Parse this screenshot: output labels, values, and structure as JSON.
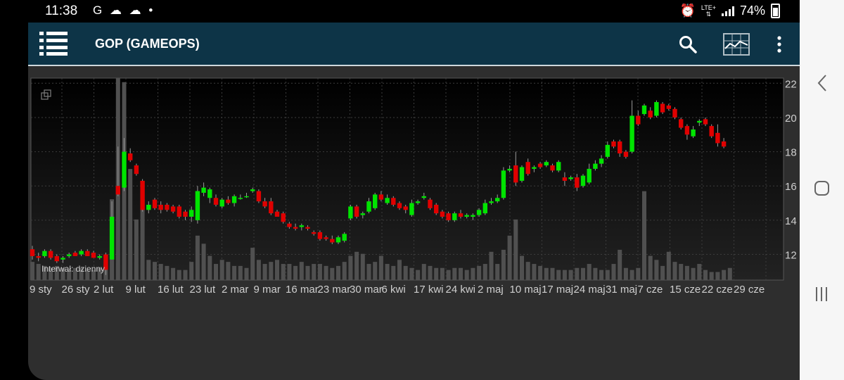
{
  "status": {
    "time": "11:38",
    "notification_icons": "G ☁ ☁ •",
    "lte": "LTE+",
    "battery": "74%"
  },
  "appbar": {
    "title": "GOP (GAMEOPS)"
  },
  "colors": {
    "up": "#00e400",
    "down": "#e00000",
    "volume": "#505050",
    "grid": "#3c3c3c",
    "axis_text": "#cfcfcf"
  },
  "chart_data": {
    "type": "candlestick",
    "interval_label": "Interwał: dzienny",
    "ylim": [
      10.5,
      22.3
    ],
    "y_ticks": [
      "22",
      "20",
      "18",
      "16",
      "14",
      "12"
    ],
    "x_labels": [
      "9 sty",
      "26 sty",
      "2 lut",
      "9 lut",
      "16 lut",
      "23 lut",
      "2 mar",
      "9 mar",
      "16 mar",
      "23 mar",
      "30 mar",
      "6 kwi",
      "17 kwi",
      "24 kwi",
      "2 maj",
      "10 maj",
      "17 maj",
      "24 maj",
      "31 maj",
      "7 cze",
      "15 cze",
      "22 cze",
      "29 cze"
    ],
    "candles": [
      {
        "o": 12.3,
        "h": 12.5,
        "l": 11.7,
        "c": 11.9
      },
      {
        "o": 11.9,
        "h": 12.1,
        "l": 11.6,
        "c": 11.8
      },
      {
        "o": 11.9,
        "h": 12.3,
        "l": 11.8,
        "c": 12.2
      },
      {
        "o": 12.2,
        "h": 12.3,
        "l": 11.7,
        "c": 11.8
      },
      {
        "o": 11.9,
        "h": 12.0,
        "l": 11.5,
        "c": 11.6
      },
      {
        "o": 11.7,
        "h": 11.9,
        "l": 11.5,
        "c": 11.8
      },
      {
        "o": 11.9,
        "h": 12.1,
        "l": 11.8,
        "c": 12.0
      },
      {
        "o": 12.1,
        "h": 12.2,
        "l": 11.9,
        "c": 11.9
      },
      {
        "o": 12.0,
        "h": 12.3,
        "l": 11.9,
        "c": 12.2
      },
      {
        "o": 12.2,
        "h": 12.3,
        "l": 11.9,
        "c": 11.9
      },
      {
        "o": 12.1,
        "h": 12.2,
        "l": 11.8,
        "c": 11.8
      },
      {
        "o": 11.8,
        "h": 12.0,
        "l": 11.7,
        "c": 11.9
      },
      {
        "o": 12.0,
        "h": 12.1,
        "l": 10.8,
        "c": 11.1
      },
      {
        "o": 11.7,
        "h": 15.1,
        "l": 11.7,
        "c": 14.2
      },
      {
        "o": 16.0,
        "h": 18.3,
        "l": 15.4,
        "c": 15.5
      },
      {
        "o": 15.9,
        "h": 18.8,
        "l": 15.7,
        "c": 18.0
      },
      {
        "o": 17.9,
        "h": 18.2,
        "l": 17.4,
        "c": 17.5
      },
      {
        "o": 17.2,
        "h": 17.3,
        "l": 16.6,
        "c": 16.7
      },
      {
        "o": 16.3,
        "h": 16.4,
        "l": 14.5,
        "c": 14.6
      },
      {
        "o": 14.6,
        "h": 15.1,
        "l": 14.4,
        "c": 14.9
      },
      {
        "o": 15.2,
        "h": 15.3,
        "l": 14.6,
        "c": 14.7
      },
      {
        "o": 14.9,
        "h": 15.1,
        "l": 14.4,
        "c": 14.6
      },
      {
        "o": 14.9,
        "h": 15.0,
        "l": 14.5,
        "c": 14.6
      },
      {
        "o": 14.8,
        "h": 14.9,
        "l": 14.4,
        "c": 14.5
      },
      {
        "o": 14.8,
        "h": 14.9,
        "l": 14.1,
        "c": 14.2
      },
      {
        "o": 14.5,
        "h": 14.6,
        "l": 14.0,
        "c": 14.2
      },
      {
        "o": 14.2,
        "h": 14.8,
        "l": 13.9,
        "c": 14.6
      },
      {
        "o": 14.0,
        "h": 16.0,
        "l": 13.8,
        "c": 15.7
      },
      {
        "o": 15.6,
        "h": 16.2,
        "l": 15.4,
        "c": 15.9
      },
      {
        "o": 15.3,
        "h": 15.9,
        "l": 15.0,
        "c": 15.8
      },
      {
        "o": 15.3,
        "h": 15.5,
        "l": 14.8,
        "c": 14.9
      },
      {
        "o": 14.8,
        "h": 15.3,
        "l": 14.7,
        "c": 15.2
      },
      {
        "o": 15.2,
        "h": 15.4,
        "l": 14.9,
        "c": 15.0
      },
      {
        "o": 15.0,
        "h": 15.5,
        "l": 14.8,
        "c": 15.4
      },
      {
        "o": 15.3,
        "h": 15.5,
        "l": 15.2,
        "c": 15.3
      },
      {
        "o": 15.4,
        "h": 15.6,
        "l": 15.3,
        "c": 15.4
      },
      {
        "o": 15.7,
        "h": 15.9,
        "l": 15.6,
        "c": 15.8
      },
      {
        "o": 15.7,
        "h": 15.8,
        "l": 15.0,
        "c": 15.1
      },
      {
        "o": 15.1,
        "h": 15.3,
        "l": 14.7,
        "c": 14.8
      },
      {
        "o": 15.1,
        "h": 15.3,
        "l": 14.3,
        "c": 14.4
      },
      {
        "o": 14.5,
        "h": 14.6,
        "l": 14.2,
        "c": 14.2
      },
      {
        "o": 14.4,
        "h": 14.5,
        "l": 13.8,
        "c": 13.9
      },
      {
        "o": 13.8,
        "h": 13.9,
        "l": 13.5,
        "c": 13.6
      },
      {
        "o": 13.6,
        "h": 13.8,
        "l": 13.4,
        "c": 13.5
      },
      {
        "o": 13.6,
        "h": 13.8,
        "l": 13.4,
        "c": 13.7
      },
      {
        "o": 13.6,
        "h": 13.7,
        "l": 13.4,
        "c": 13.5
      },
      {
        "o": 13.3,
        "h": 13.4,
        "l": 13.1,
        "c": 13.2
      },
      {
        "o": 13.3,
        "h": 13.4,
        "l": 12.8,
        "c": 12.9
      },
      {
        "o": 13.0,
        "h": 13.1,
        "l": 12.8,
        "c": 12.9
      },
      {
        "o": 12.9,
        "h": 13.1,
        "l": 12.6,
        "c": 12.7
      },
      {
        "o": 12.7,
        "h": 13.1,
        "l": 12.6,
        "c": 13.0
      },
      {
        "o": 12.8,
        "h": 13.3,
        "l": 12.7,
        "c": 13.2
      },
      {
        "o": 14.1,
        "h": 14.9,
        "l": 14.0,
        "c": 14.8
      },
      {
        "o": 14.8,
        "h": 14.9,
        "l": 14.1,
        "c": 14.2
      },
      {
        "o": 14.3,
        "h": 14.5,
        "l": 14.1,
        "c": 14.4
      },
      {
        "o": 14.5,
        "h": 15.3,
        "l": 14.4,
        "c": 15.1
      },
      {
        "o": 14.7,
        "h": 15.6,
        "l": 14.6,
        "c": 15.5
      },
      {
        "o": 15.5,
        "h": 15.7,
        "l": 15.1,
        "c": 15.2
      },
      {
        "o": 15.0,
        "h": 15.5,
        "l": 14.9,
        "c": 15.3
      },
      {
        "o": 15.3,
        "h": 15.4,
        "l": 14.8,
        "c": 14.9
      },
      {
        "o": 15.0,
        "h": 15.1,
        "l": 14.6,
        "c": 14.7
      },
      {
        "o": 14.8,
        "h": 14.9,
        "l": 14.4,
        "c": 14.6
      },
      {
        "o": 14.3,
        "h": 15.2,
        "l": 14.2,
        "c": 15.0
      },
      {
        "o": 15.0,
        "h": 15.2,
        "l": 14.9,
        "c": 15.1
      },
      {
        "o": 15.3,
        "h": 15.6,
        "l": 15.2,
        "c": 15.4
      },
      {
        "o": 15.2,
        "h": 15.3,
        "l": 14.6,
        "c": 14.7
      },
      {
        "o": 14.9,
        "h": 15.0,
        "l": 14.3,
        "c": 14.4
      },
      {
        "o": 14.5,
        "h": 14.6,
        "l": 14.1,
        "c": 14.2
      },
      {
        "o": 14.4,
        "h": 14.5,
        "l": 13.9,
        "c": 14.0
      },
      {
        "o": 14.0,
        "h": 14.5,
        "l": 13.9,
        "c": 14.4
      },
      {
        "o": 14.4,
        "h": 14.6,
        "l": 14.1,
        "c": 14.2
      },
      {
        "o": 14.2,
        "h": 14.4,
        "l": 14.1,
        "c": 14.3
      },
      {
        "o": 14.2,
        "h": 14.4,
        "l": 14.0,
        "c": 14.3
      },
      {
        "o": 14.3,
        "h": 14.7,
        "l": 14.2,
        "c": 14.6
      },
      {
        "o": 14.4,
        "h": 15.2,
        "l": 14.3,
        "c": 15.0
      },
      {
        "o": 15.0,
        "h": 15.3,
        "l": 14.9,
        "c": 15.1
      },
      {
        "o": 15.1,
        "h": 15.5,
        "l": 15.0,
        "c": 15.3
      },
      {
        "o": 15.3,
        "h": 17.1,
        "l": 15.2,
        "c": 16.9
      },
      {
        "o": 16.9,
        "h": 17.2,
        "l": 16.8,
        "c": 17.0
      },
      {
        "o": 17.2,
        "h": 18.0,
        "l": 16.0,
        "c": 16.2
      },
      {
        "o": 16.3,
        "h": 17.2,
        "l": 16.2,
        "c": 17.1
      },
      {
        "o": 17.4,
        "h": 17.6,
        "l": 16.6,
        "c": 16.7
      },
      {
        "o": 17.0,
        "h": 17.2,
        "l": 16.8,
        "c": 17.1
      },
      {
        "o": 17.3,
        "h": 17.4,
        "l": 17.0,
        "c": 17.1
      },
      {
        "o": 17.2,
        "h": 17.5,
        "l": 17.1,
        "c": 17.4
      },
      {
        "o": 17.2,
        "h": 17.3,
        "l": 16.8,
        "c": 16.9
      },
      {
        "o": 16.9,
        "h": 17.5,
        "l": 16.8,
        "c": 17.4
      },
      {
        "o": 16.5,
        "h": 16.8,
        "l": 16.0,
        "c": 16.3
      },
      {
        "o": 16.4,
        "h": 16.6,
        "l": 16.3,
        "c": 16.5
      },
      {
        "o": 16.5,
        "h": 16.7,
        "l": 15.7,
        "c": 15.9
      },
      {
        "o": 16.0,
        "h": 16.7,
        "l": 15.9,
        "c": 16.6
      },
      {
        "o": 16.2,
        "h": 17.3,
        "l": 16.1,
        "c": 17.0
      },
      {
        "o": 17.0,
        "h": 17.5,
        "l": 16.9,
        "c": 17.3
      },
      {
        "o": 17.3,
        "h": 17.8,
        "l": 17.1,
        "c": 17.6
      },
      {
        "o": 17.7,
        "h": 18.6,
        "l": 17.6,
        "c": 18.4
      },
      {
        "o": 18.6,
        "h": 18.7,
        "l": 18.2,
        "c": 18.3
      },
      {
        "o": 18.6,
        "h": 18.7,
        "l": 17.7,
        "c": 17.9
      },
      {
        "o": 18.0,
        "h": 18.1,
        "l": 17.6,
        "c": 17.7
      },
      {
        "o": 18.0,
        "h": 21.0,
        "l": 17.9,
        "c": 20.1
      },
      {
        "o": 20.1,
        "h": 20.4,
        "l": 19.5,
        "c": 19.6
      },
      {
        "o": 20.2,
        "h": 20.8,
        "l": 20.1,
        "c": 20.7
      },
      {
        "o": 20.4,
        "h": 20.6,
        "l": 19.9,
        "c": 20.0
      },
      {
        "o": 20.1,
        "h": 21.0,
        "l": 20.0,
        "c": 20.9
      },
      {
        "o": 20.8,
        "h": 20.9,
        "l": 20.2,
        "c": 20.3
      },
      {
        "o": 20.7,
        "h": 20.8,
        "l": 20.4,
        "c": 20.5
      },
      {
        "o": 20.5,
        "h": 20.6,
        "l": 19.9,
        "c": 20.0
      },
      {
        "o": 19.9,
        "h": 20.0,
        "l": 19.3,
        "c": 19.4
      },
      {
        "o": 19.5,
        "h": 19.6,
        "l": 18.7,
        "c": 19.0
      },
      {
        "o": 18.9,
        "h": 19.5,
        "l": 18.8,
        "c": 19.3
      },
      {
        "o": 19.7,
        "h": 19.9,
        "l": 19.5,
        "c": 19.8
      },
      {
        "o": 19.9,
        "h": 20.0,
        "l": 19.5,
        "c": 19.6
      },
      {
        "o": 19.5,
        "h": 19.6,
        "l": 18.8,
        "c": 18.9
      },
      {
        "o": 19.1,
        "h": 19.6,
        "l": 18.3,
        "c": 18.5
      },
      {
        "o": 18.6,
        "h": 18.8,
        "l": 18.2,
        "c": 18.3
      }
    ],
    "volume": [
      9,
      8,
      7,
      6,
      7,
      6,
      5,
      6,
      6,
      5,
      5,
      6,
      9,
      40,
      100,
      98,
      55,
      30,
      40,
      10,
      9,
      8,
      7,
      6,
      5,
      5,
      9,
      22,
      18,
      12,
      8,
      10,
      9,
      7,
      7,
      6,
      16,
      10,
      8,
      9,
      10,
      8,
      8,
      7,
      9,
      7,
      8,
      8,
      7,
      6,
      7,
      9,
      12,
      14,
      13,
      8,
      9,
      12,
      8,
      7,
      10,
      7,
      6,
      5,
      8,
      7,
      6,
      6,
      5,
      6,
      6,
      5,
      6,
      7,
      8,
      14,
      8,
      15,
      22,
      30,
      12,
      9,
      8,
      7,
      6,
      6,
      5,
      5,
      5,
      6,
      6,
      8,
      6,
      5,
      5,
      8,
      15,
      6,
      5,
      6,
      44,
      12,
      10,
      7,
      14,
      9,
      8,
      7,
      6,
      8,
      5,
      4,
      4,
      5,
      6
    ]
  }
}
